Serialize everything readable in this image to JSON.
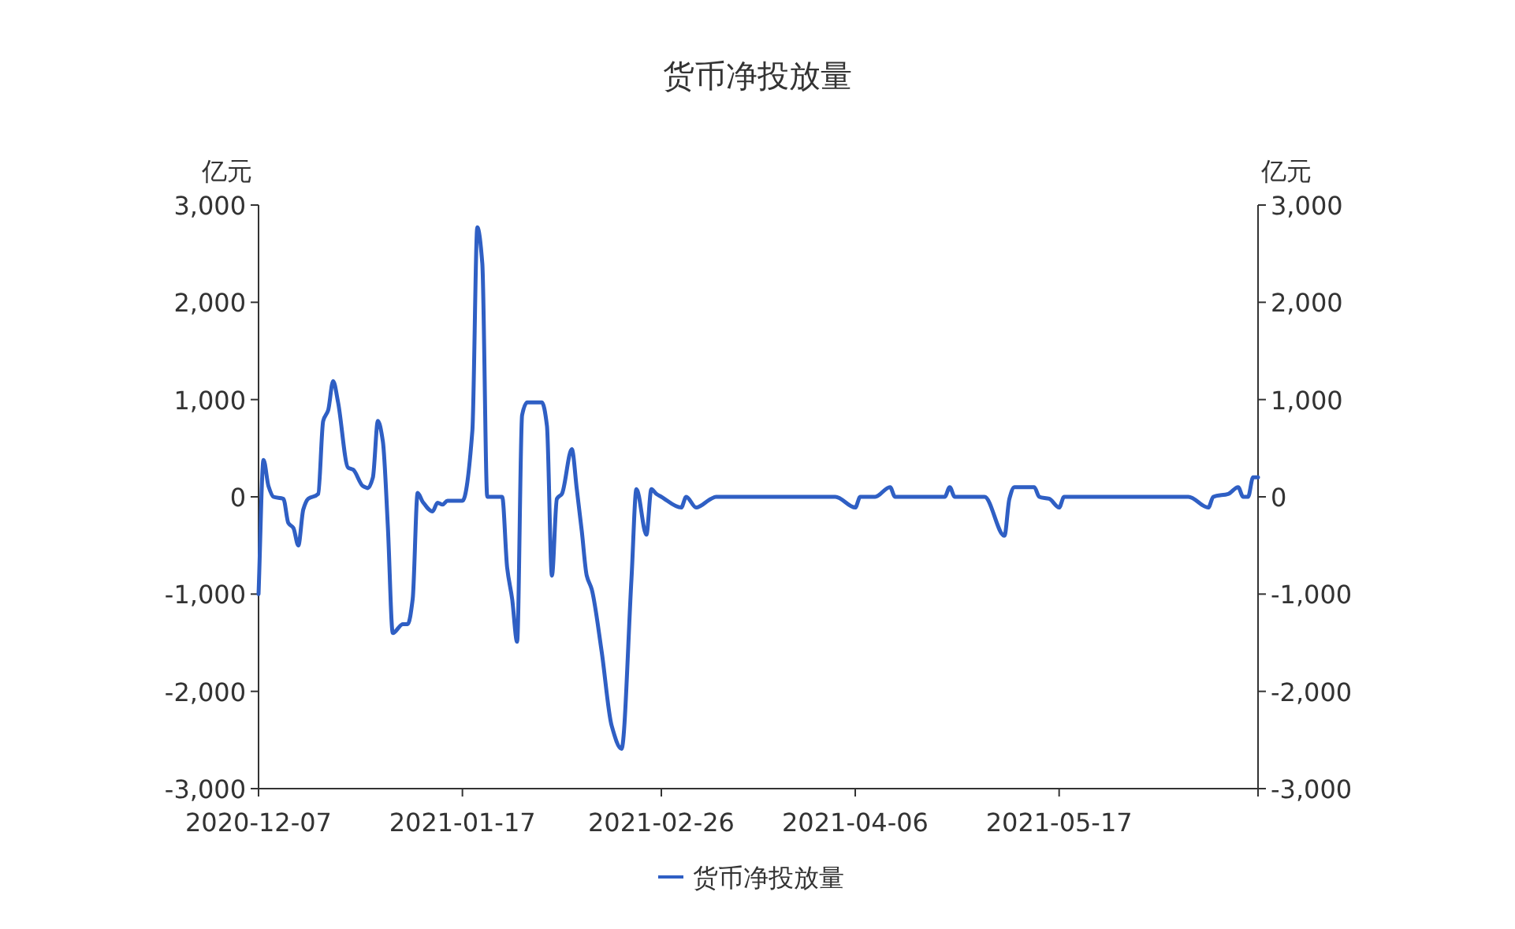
{
  "chart_data": {
    "type": "line",
    "title": "货币净投放量",
    "ylabel": "亿元",
    "y2label": "亿元",
    "xlim": [
      "2020-12-07",
      "2021-06-26"
    ],
    "xticks": [
      {
        "value": "2020-12-07",
        "label": "2020-12-07"
      },
      {
        "value": "2021-01-17",
        "label": "2021-01-17"
      },
      {
        "value": "2021-02-26",
        "label": "2021-02-26"
      },
      {
        "value": "2021-04-06",
        "label": "2021-04-06"
      },
      {
        "value": "2021-05-17",
        "label": "2021-05-17"
      }
    ],
    "ylim": [
      -3000,
      3000
    ],
    "yticks": [
      {
        "value": -3000,
        "label": "-3,000"
      },
      {
        "value": -2000,
        "label": "-2,000"
      },
      {
        "value": -1000,
        "label": "-1,000"
      },
      {
        "value": 0,
        "label": "0"
      },
      {
        "value": 1000,
        "label": "1,000"
      },
      {
        "value": 2000,
        "label": "2,000"
      },
      {
        "value": 3000,
        "label": "3,000"
      }
    ],
    "y2lim": [
      -3000,
      3000
    ],
    "y2ticks": [
      {
        "value": -3000,
        "label": "-3,000"
      },
      {
        "value": -2000,
        "label": "-2,000"
      },
      {
        "value": -1000,
        "label": "-1,000"
      },
      {
        "value": 0,
        "label": "0"
      },
      {
        "value": 1000,
        "label": "1,000"
      },
      {
        "value": 2000,
        "label": "2,000"
      },
      {
        "value": 3000,
        "label": "3,000"
      }
    ],
    "grid": false,
    "legend": "bottom",
    "line_style": "solid",
    "x": [
      "2020-12-07",
      "2020-12-08",
      "2020-12-09",
      "2020-12-10",
      "2020-12-12",
      "2020-12-13",
      "2020-12-14",
      "2020-12-15",
      "2020-12-16",
      "2020-12-17",
      "2020-12-19",
      "2020-12-20",
      "2020-12-21",
      "2020-12-22",
      "2020-12-23",
      "2020-12-25",
      "2020-12-26",
      "2020-12-28",
      "2020-12-29",
      "2020-12-30",
      "2020-12-31",
      "2021-01-01",
      "2021-01-02",
      "2021-01-03",
      "2021-01-05",
      "2021-01-06",
      "2021-01-07",
      "2021-01-08",
      "2021-01-09",
      "2021-01-11",
      "2021-01-12",
      "2021-01-13",
      "2021-01-14",
      "2021-01-17",
      "2021-01-19",
      "2021-01-20",
      "2021-01-21",
      "2021-01-22",
      "2021-01-25",
      "2021-01-26",
      "2021-01-27",
      "2021-01-28",
      "2021-01-29",
      "2021-01-30",
      "2021-02-02",
      "2021-02-03",
      "2021-02-04",
      "2021-02-05",
      "2021-02-06",
      "2021-02-08",
      "2021-02-09",
      "2021-02-10",
      "2021-02-11",
      "2021-02-12",
      "2021-02-14",
      "2021-02-16",
      "2021-02-18",
      "2021-02-20",
      "2021-02-21",
      "2021-02-23",
      "2021-02-24",
      "2021-02-25",
      "2021-02-26",
      "2021-03-02",
      "2021-03-03",
      "2021-03-05",
      "2021-03-08",
      "2021-03-09",
      "2021-04-02",
      "2021-04-06",
      "2021-04-07",
      "2021-04-10",
      "2021-04-13",
      "2021-04-14",
      "2021-04-24",
      "2021-04-25",
      "2021-04-26",
      "2021-05-02",
      "2021-05-06",
      "2021-05-07",
      "2021-05-08",
      "2021-05-12",
      "2021-05-13",
      "2021-05-15",
      "2021-05-17",
      "2021-05-18",
      "2021-06-12",
      "2021-06-16",
      "2021-06-17",
      "2021-06-20",
      "2021-06-22",
      "2021-06-23",
      "2021-06-24",
      "2021-06-25",
      "2021-06-26"
    ],
    "series": [
      {
        "name": "货币净投放量",
        "color": "#2f5fc4",
        "values": [
          -1000,
          380,
          110,
          0,
          -20,
          -270,
          -320,
          -500,
          -130,
          -20,
          30,
          780,
          890,
          1190,
          970,
          300,
          280,
          110,
          90,
          200,
          780,
          570,
          -300,
          -1400,
          -1310,
          -1310,
          -1050,
          40,
          -50,
          -150,
          -60,
          -80,
          -40,
          -40,
          680,
          2770,
          2400,
          0,
          0,
          -730,
          -1050,
          -1490,
          840,
          970,
          970,
          730,
          -810,
          -20,
          30,
          490,
          80,
          -350,
          -810,
          -950,
          -1590,
          -2350,
          -2590,
          -840,
          80,
          -390,
          80,
          30,
          0,
          -110,
          0,
          -110,
          -20,
          0,
          0,
          -110,
          0,
          0,
          100,
          0,
          0,
          100,
          0,
          0,
          -400,
          -20,
          100,
          100,
          0,
          -20,
          -110,
          0,
          0,
          -110,
          0,
          30,
          100,
          0,
          0,
          200,
          200
        ]
      }
    ]
  }
}
